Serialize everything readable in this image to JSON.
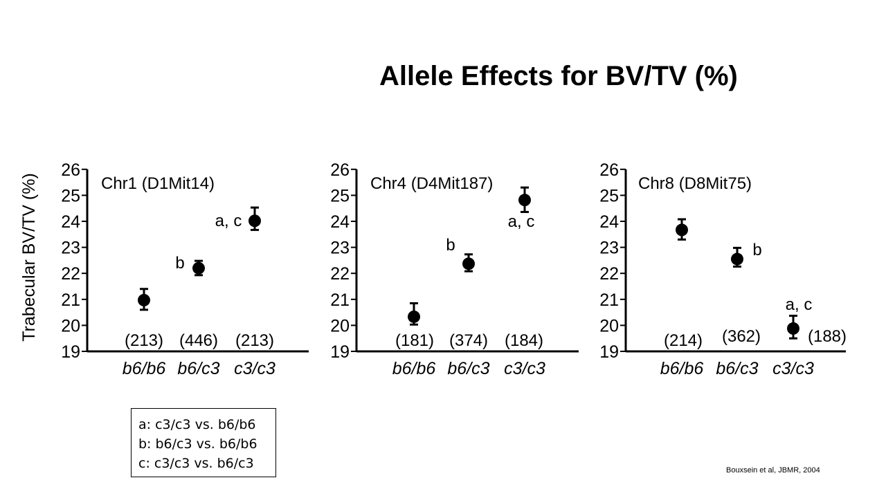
{
  "title": "Allele Effects for BV/TV (%)",
  "ylabel": "Trabecular BV/TV (%)",
  "legend": [
    "a: c3/c3 vs. b6/b6",
    "b: b6/c3 vs. b6/b6",
    "c: c3/c3 vs. b6/c3"
  ],
  "citation": "Bouxsein et al, JBMR, 2004",
  "chart_data": [
    {
      "type": "scatter",
      "title": "Chr1 (D1Mit14)",
      "categories": [
        "b6/b6",
        "b6/c3",
        "c3/c3"
      ],
      "ylim": [
        19,
        26
      ],
      "yticks": [
        "19",
        "20",
        "21",
        "22",
        "23",
        "24",
        "25",
        "26"
      ],
      "values": [
        20.97,
        22.2,
        24.02
      ],
      "err_low": [
        20.6,
        21.93,
        23.67
      ],
      "err_high": [
        21.4,
        22.48,
        24.53
      ],
      "point_labels": [
        "",
        "b",
        "a, c"
      ],
      "n_labels": [
        "(213)",
        "(446)",
        "(213)"
      ],
      "grid": false
    },
    {
      "type": "scatter",
      "title": "Chr4 (D4Mit187)",
      "categories": [
        "b6/b6",
        "b6/c3",
        "c3/c3"
      ],
      "ylim": [
        19,
        26
      ],
      "yticks": [
        "19",
        "20",
        "21",
        "22",
        "23",
        "24",
        "25",
        "26"
      ],
      "values": [
        20.33,
        22.37,
        24.82
      ],
      "err_low": [
        20.03,
        22.08,
        24.36
      ],
      "err_high": [
        20.85,
        22.73,
        25.3
      ],
      "point_labels": [
        "",
        "b",
        "a, c"
      ],
      "n_labels": [
        "(181)",
        "(374)",
        "(184)"
      ],
      "grid": false
    },
    {
      "type": "scatter",
      "title": "Chr8 (D8Mit75)",
      "categories": [
        "b6/b6",
        "b6/c3",
        "c3/c3"
      ],
      "ylim": [
        19,
        26
      ],
      "yticks": [
        "19",
        "20",
        "21",
        "22",
        "23",
        "24",
        "25",
        "26"
      ],
      "values": [
        23.67,
        22.55,
        19.88
      ],
      "err_low": [
        23.3,
        22.26,
        19.5
      ],
      "err_high": [
        24.08,
        22.98,
        20.37
      ],
      "point_labels": [
        "",
        "b",
        "a, c"
      ],
      "n_labels": [
        "(214)",
        "(362)",
        "(188)"
      ],
      "grid": false
    }
  ]
}
